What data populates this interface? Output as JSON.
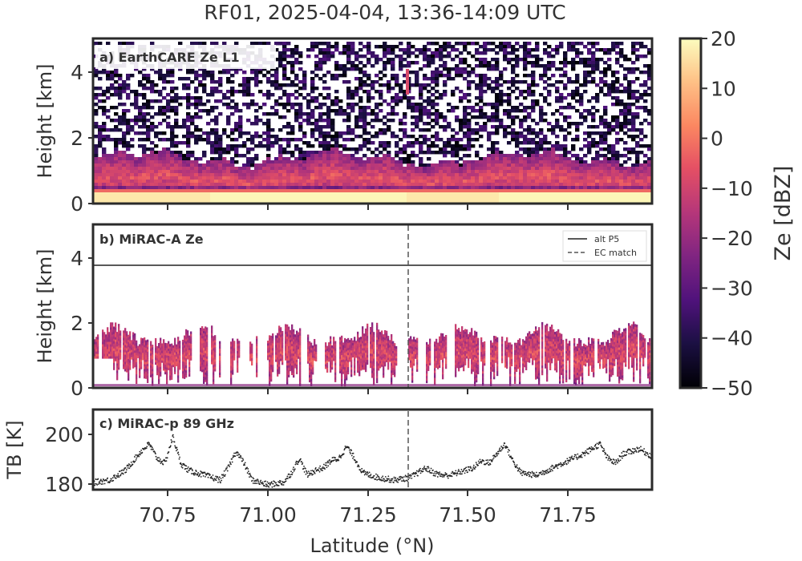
{
  "title": "RF01, 2025-04-04, 13:36-14:09 UTC",
  "xlabel": "Latitude (°N)",
  "x_ticks": [
    "70.75",
    "71.00",
    "71.25",
    "71.50",
    "71.75"
  ],
  "panels": {
    "a": {
      "label": "a) EarthCARE Ze L1",
      "ylabel": "Height [km]",
      "y_ticks": [
        "0",
        "2",
        "4"
      ]
    },
    "b": {
      "label": "b) MiRAC-A Ze",
      "ylabel": "Height [km]",
      "y_ticks": [
        "0",
        "2",
        "4"
      ],
      "legend": {
        "line1": "alt P5",
        "line2": "EC match"
      }
    },
    "c": {
      "label": "c) MiRAC-p 89 GHz",
      "ylabel": "TB [K]",
      "y_ticks": [
        "180",
        "200"
      ]
    }
  },
  "colorbar": {
    "label": "Ze [dBZ]",
    "ticks": [
      "20",
      "10",
      "0",
      "−10",
      "−20",
      "−30",
      "−40",
      "−50"
    ]
  },
  "chart_data": [
    {
      "type": "heatmap",
      "panel": "a",
      "title": "a) EarthCARE Ze L1",
      "xlabel": "",
      "ylabel": "Height [km]",
      "xlim": [
        70.56,
        71.97
      ],
      "ylim": [
        0,
        5
      ],
      "colormap": "magma",
      "clim": [
        -50,
        20
      ],
      "cloud_layer_top_km": [
        1.2,
        1.8
      ],
      "surface_band_km": [
        0,
        0.45
      ],
      "noise_region_km": [
        2.0,
        5.0
      ]
    },
    {
      "type": "heatmap",
      "panel": "b",
      "title": "b) MiRAC-A Ze",
      "xlabel": "",
      "ylabel": "Height [km]",
      "xlim": [
        70.56,
        71.97
      ],
      "ylim": [
        0,
        5
      ],
      "colormap": "magma",
      "clim": [
        -50,
        20
      ],
      "cloud_top_km": [
        1.2,
        2.0
      ],
      "series": [
        {
          "name": "alt P5",
          "style": "solid",
          "y_km": 3.72
        },
        {
          "name": "EC match",
          "style": "dashed",
          "x_lat": 71.35
        }
      ]
    },
    {
      "type": "scatter",
      "panel": "c",
      "title": "c) MiRAC-p 89 GHz",
      "xlabel": "Latitude (°N)",
      "ylabel": "TB [K]",
      "xlim": [
        70.56,
        71.97
      ],
      "ylim": [
        177,
        210
      ],
      "ec_match_lat": 71.35,
      "x": [
        70.56,
        70.6,
        70.64,
        70.68,
        70.7,
        70.72,
        70.74,
        70.76,
        70.78,
        70.8,
        70.84,
        70.88,
        70.9,
        70.92,
        70.94,
        70.96,
        71.0,
        71.04,
        71.06,
        71.08,
        71.1,
        71.12,
        71.14,
        71.16,
        71.18,
        71.2,
        71.22,
        71.24,
        71.28,
        71.32,
        71.36,
        71.38,
        71.4,
        71.42,
        71.44,
        71.46,
        71.5,
        71.52,
        71.54,
        71.56,
        71.58,
        71.6,
        71.62,
        71.64,
        71.68,
        71.72,
        71.76,
        71.8,
        71.84,
        71.86,
        71.88,
        71.9,
        71.94,
        71.97
      ],
      "y": [
        180,
        181,
        185,
        193,
        196,
        190,
        188,
        199,
        188,
        185,
        183,
        181,
        186,
        193,
        188,
        181,
        179,
        180,
        184,
        190,
        183,
        185,
        186,
        189,
        190,
        195,
        190,
        184,
        182,
        181,
        182,
        184,
        186,
        184,
        183,
        183,
        185,
        186,
        189,
        188,
        192,
        196,
        189,
        184,
        183,
        186,
        189,
        192,
        196,
        190,
        188,
        192,
        194,
        191
      ]
    }
  ]
}
